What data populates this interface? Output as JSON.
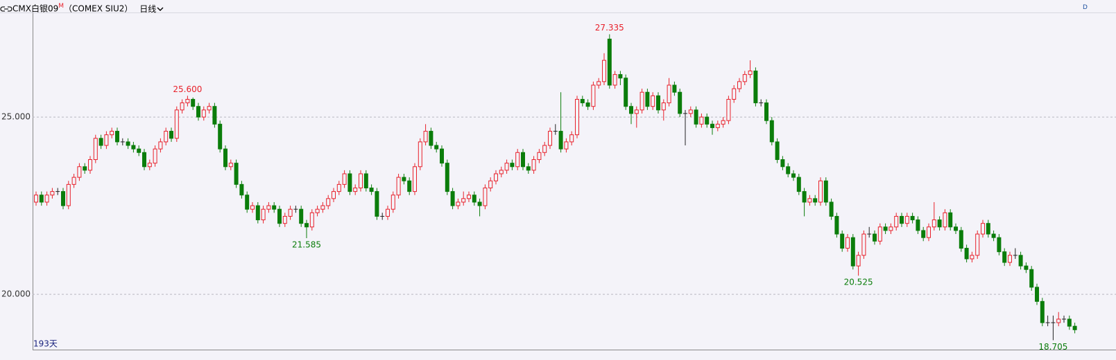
{
  "header": {
    "symbol": "CMX白银09",
    "suffix": "M",
    "code": "（COMEX SIU2）",
    "period": "日线",
    "corner": "D"
  },
  "chart_data": {
    "type": "candlestick",
    "count_label": "193天",
    "up_color": "#e8202a",
    "down_color": "#0b7d0b",
    "ylim": [
      18.44,
      27.95
    ],
    "yticks": [
      {
        "value": 20,
        "label": "20.000"
      },
      {
        "value": 25,
        "label": "25.000"
      }
    ],
    "grid": true,
    "open": [
      22.6,
      22.8,
      22.6,
      22.8,
      22.9,
      22.9,
      22.5,
      23.1,
      23.3,
      23.6,
      23.5,
      23.8,
      24.4,
      24.2,
      24.5,
      24.6,
      24.3,
      24.3,
      24.2,
      24.1,
      24.0,
      23.6,
      23.7,
      24.1,
      24.3,
      24.6,
      24.4,
      25.2,
      25.4,
      25.5,
      25.3,
      25.0,
      25.2,
      25.3,
      24.8,
      24.1,
      23.6,
      23.7,
      23.1,
      22.8,
      22.4,
      22.5,
      22.1,
      22.4,
      22.5,
      22.4,
      22.0,
      22.2,
      22.4,
      22.4,
      22.0,
      21.9,
      22.3,
      22.4,
      22.5,
      22.7,
      22.9,
      23.1,
      23.4,
      22.9,
      23.0,
      23.4,
      23.0,
      22.9,
      22.2,
      22.2,
      22.4,
      22.8,
      23.3,
      23.2,
      22.9,
      23.6,
      24.3,
      24.6,
      24.2,
      24.1,
      23.7,
      22.9,
      22.5,
      22.6,
      22.7,
      22.8,
      22.6,
      22.5,
      23.0,
      23.2,
      23.4,
      23.5,
      23.7,
      23.6,
      24.0,
      23.6,
      23.5,
      23.8,
      24.0,
      24.2,
      24.6,
      24.6,
      24.1,
      24.3,
      24.5,
      25.5,
      25.4,
      25.3,
      25.9,
      26.0,
      27.2,
      25.9,
      26.2,
      26.1,
      25.3,
      25.1,
      25.2,
      25.7,
      25.3,
      25.6,
      25.2,
      25.4,
      25.9,
      25.7,
      25.1,
      25.1,
      25.2,
      24.8,
      25.0,
      24.8,
      24.7,
      24.8,
      24.9,
      25.5,
      25.8,
      26.0,
      26.2,
      26.3,
      25.4,
      25.4,
      24.9,
      24.3,
      23.8,
      23.6,
      23.4,
      23.3,
      22.9,
      22.6,
      22.7,
      22.6,
      23.2,
      22.6,
      22.2,
      21.7,
      21.3,
      21.6,
      20.8,
      21.1,
      21.7,
      21.7,
      21.5,
      21.9,
      21.8,
      21.9,
      22.2,
      22.0,
      22.2,
      22.1,
      21.8,
      21.6,
      21.9,
      22.1,
      21.9,
      22.3,
      21.9,
      21.8,
      21.3,
      21.0,
      21.1,
      21.7,
      22.0,
      21.7,
      21.6,
      21.2,
      20.9,
      21.1,
      21.1,
      20.8,
      20.7,
      20.2,
      19.8,
      19.2,
      19.2,
      19.2,
      19.3,
      19.3,
      19.1
    ],
    "high": [
      22.9,
      22.9,
      22.9,
      23.0,
      23.0,
      23.0,
      23.2,
      23.4,
      23.7,
      23.7,
      23.9,
      24.5,
      24.5,
      24.6,
      24.7,
      24.7,
      24.4,
      24.4,
      24.3,
      24.2,
      24.1,
      23.8,
      24.2,
      24.4,
      24.7,
      24.7,
      25.3,
      25.5,
      25.6,
      25.55,
      25.4,
      25.3,
      25.4,
      25.4,
      24.9,
      24.2,
      23.8,
      23.8,
      23.2,
      22.9,
      22.6,
      22.6,
      22.5,
      22.6,
      22.6,
      22.5,
      22.3,
      22.5,
      22.5,
      22.5,
      22.1,
      22.4,
      22.5,
      22.6,
      22.8,
      23.0,
      23.2,
      23.5,
      23.5,
      23.1,
      23.5,
      23.5,
      23.1,
      23.0,
      22.3,
      22.5,
      22.9,
      23.4,
      23.4,
      23.3,
      23.7,
      24.4,
      24.8,
      24.7,
      24.3,
      24.2,
      23.8,
      23.0,
      22.7,
      22.9,
      22.9,
      22.9,
      22.7,
      23.1,
      23.3,
      23.5,
      23.6,
      23.8,
      23.8,
      24.1,
      24.1,
      23.7,
      23.9,
      24.1,
      24.3,
      24.7,
      24.8,
      25.7,
      24.4,
      24.6,
      25.6,
      25.6,
      25.5,
      26.0,
      26.1,
      26.8,
      27.335,
      26.3,
      26.3,
      26.2,
      25.4,
      25.3,
      25.8,
      25.8,
      25.7,
      25.7,
      25.5,
      26.1,
      26.0,
      25.8,
      25.2,
      25.3,
      25.3,
      25.1,
      25.1,
      24.9,
      24.9,
      25.0,
      25.6,
      25.9,
      26.1,
      26.3,
      26.6,
      26.4,
      25.5,
      25.5,
      25.0,
      24.4,
      23.9,
      23.7,
      23.5,
      23.4,
      23.0,
      22.8,
      22.8,
      23.3,
      23.3,
      22.7,
      22.3,
      21.8,
      21.7,
      21.7,
      21.2,
      21.8,
      21.9,
      21.8,
      22.0,
      22.0,
      22.0,
      22.3,
      22.3,
      22.3,
      22.3,
      22.2,
      21.9,
      22.0,
      22.6,
      22.2,
      22.4,
      22.4,
      22.0,
      21.9,
      21.4,
      21.2,
      21.8,
      22.1,
      22.1,
      21.8,
      21.7,
      21.3,
      21.2,
      21.3,
      21.2,
      20.9,
      20.8,
      20.3,
      19.9,
      19.4,
      19.4,
      19.5,
      19.4,
      19.4,
      19.2
    ],
    "low": [
      22.5,
      22.5,
      22.5,
      22.7,
      22.8,
      22.4,
      22.4,
      23.0,
      23.2,
      23.4,
      23.4,
      23.7,
      24.1,
      24.1,
      24.4,
      24.2,
      24.2,
      24.1,
      24.0,
      23.9,
      23.5,
      23.5,
      23.6,
      24.0,
      24.2,
      24.3,
      24.3,
      25.1,
      25.3,
      25.2,
      24.9,
      24.9,
      25.1,
      24.7,
      24.0,
      23.5,
      23.5,
      23.0,
      22.7,
      22.3,
      22.3,
      22.0,
      22.0,
      22.3,
      22.3,
      21.9,
      21.9,
      22.1,
      22.3,
      21.9,
      21.585,
      21.8,
      22.2,
      22.3,
      22.4,
      22.6,
      22.8,
      23.0,
      22.8,
      22.8,
      22.9,
      22.9,
      22.8,
      22.1,
      22.1,
      22.1,
      22.3,
      22.7,
      23.1,
      22.8,
      22.8,
      23.5,
      24.2,
      24.1,
      24.0,
      23.6,
      22.8,
      22.4,
      22.4,
      22.5,
      22.6,
      22.5,
      22.2,
      22.4,
      22.9,
      23.1,
      23.3,
      23.4,
      23.5,
      23.5,
      23.5,
      23.4,
      23.4,
      23.7,
      23.9,
      24.1,
      24.5,
      24.0,
      24.0,
      24.2,
      24.4,
      25.3,
      25.2,
      25.2,
      25.8,
      25.9,
      25.8,
      25.8,
      25.9,
      25.2,
      24.8,
      24.7,
      25.1,
      25.2,
      25.2,
      25.1,
      24.9,
      25.3,
      25.6,
      25.0,
      24.2,
      25.0,
      24.7,
      24.7,
      24.7,
      24.5,
      24.6,
      24.7,
      24.8,
      25.4,
      25.7,
      25.9,
      26.1,
      25.3,
      25.3,
      24.8,
      24.2,
      23.7,
      23.5,
      23.3,
      23.2,
      22.8,
      22.2,
      22.5,
      22.5,
      22.5,
      22.5,
      22.1,
      21.6,
      21.2,
      21.2,
      20.7,
      20.525,
      21.0,
      21.6,
      21.4,
      21.4,
      21.7,
      21.7,
      21.8,
      21.9,
      21.9,
      22.0,
      21.7,
      21.5,
      21.5,
      21.8,
      21.8,
      21.8,
      21.8,
      21.7,
      21.2,
      20.9,
      20.9,
      21.0,
      21.6,
      21.6,
      21.5,
      21.1,
      20.8,
      20.8,
      21.0,
      20.7,
      20.6,
      20.1,
      19.7,
      19.1,
      19.1,
      18.705,
      19.1,
      19.2,
      19.0,
      18.9
    ],
    "close": [
      22.8,
      22.6,
      22.8,
      22.9,
      22.9,
      22.5,
      23.1,
      23.3,
      23.6,
      23.5,
      23.8,
      24.4,
      24.2,
      24.5,
      24.6,
      24.3,
      24.3,
      24.2,
      24.1,
      24.0,
      23.6,
      23.7,
      24.1,
      24.3,
      24.6,
      24.4,
      25.2,
      25.4,
      25.5,
      25.3,
      25.0,
      25.2,
      25.3,
      24.8,
      24.1,
      23.6,
      23.7,
      23.1,
      22.8,
      22.4,
      22.5,
      22.1,
      22.4,
      22.5,
      22.4,
      22.0,
      22.2,
      22.4,
      22.4,
      22.0,
      21.9,
      22.3,
      22.4,
      22.5,
      22.7,
      22.9,
      23.1,
      23.4,
      22.9,
      23.0,
      23.4,
      23.0,
      22.9,
      22.2,
      22.2,
      22.4,
      22.8,
      23.3,
      23.2,
      22.9,
      23.6,
      24.3,
      24.6,
      24.2,
      24.1,
      23.7,
      22.9,
      22.5,
      22.6,
      22.7,
      22.8,
      22.6,
      22.5,
      23.0,
      23.2,
      23.4,
      23.5,
      23.7,
      23.6,
      24.0,
      23.6,
      23.5,
      23.8,
      24.0,
      24.2,
      24.6,
      24.6,
      24.1,
      24.3,
      24.5,
      25.5,
      25.4,
      25.3,
      25.9,
      26.0,
      26.6,
      25.9,
      26.2,
      26.1,
      25.3,
      25.1,
      25.2,
      25.7,
      25.3,
      25.6,
      25.2,
      25.4,
      25.9,
      25.7,
      25.1,
      25.1,
      25.2,
      24.8,
      25.0,
      24.8,
      24.7,
      24.8,
      24.9,
      25.5,
      25.8,
      26.0,
      26.2,
      26.3,
      25.4,
      25.4,
      24.9,
      24.3,
      23.8,
      23.6,
      23.4,
      23.3,
      22.9,
      22.6,
      22.7,
      22.6,
      23.2,
      22.6,
      22.2,
      21.7,
      21.3,
      21.6,
      20.8,
      21.1,
      21.7,
      21.7,
      21.5,
      21.9,
      21.8,
      21.9,
      22.2,
      22.0,
      22.2,
      22.1,
      21.8,
      21.6,
      21.9,
      22.1,
      21.9,
      22.3,
      21.9,
      21.8,
      21.3,
      21.0,
      21.1,
      21.7,
      22.0,
      21.7,
      21.6,
      21.2,
      20.9,
      21.1,
      21.1,
      20.8,
      20.7,
      20.2,
      19.8,
      19.2,
      19.2,
      19.2,
      19.3,
      19.3,
      19.1,
      19.0
    ],
    "annotations": [
      {
        "value": 25.6,
        "label": "25.600"
      },
      {
        "value": 27.335,
        "label": "27.335"
      },
      {
        "value": 21.585,
        "label": "21.585"
      },
      {
        "value": 20.525,
        "label": "20.525"
      },
      {
        "value": 18.705,
        "label": "18.705"
      }
    ]
  }
}
